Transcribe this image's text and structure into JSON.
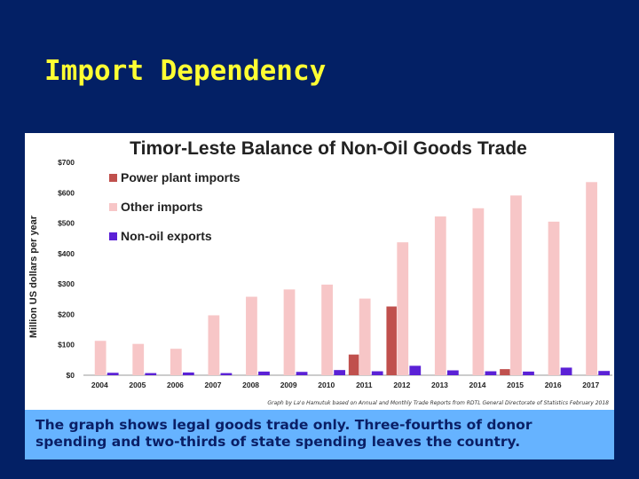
{
  "slide": {
    "title": "Import Dependency",
    "caption": "The graph shows legal goods trade only.  Three-fourths of donor spending and two-thirds of state spending leaves the country."
  },
  "colors": {
    "background": "#032065",
    "title": "#ffff33",
    "caption_box": "#66b3ff",
    "caption_text": "#0a1f66",
    "power_plant": "#c0504d",
    "other_imports": "#f7c6c7",
    "non_oil_exports": "#5b21d6"
  },
  "chart_data": {
    "type": "bar",
    "title": "Timor-Leste Balance of Non-Oil Goods Trade",
    "ylabel": "Million US dollars per year",
    "xlabel": "",
    "source_note": "Graph by La'o Hamutuk based on Annual and Monthly Trade Reports from RDTL General Directorate of Statistics February 2018",
    "ylim": [
      0,
      700
    ],
    "y_ticks": [
      "$0",
      "$100",
      "$200",
      "$300",
      "$400",
      "$500",
      "$600",
      "$700"
    ],
    "y_tick_values": [
      0,
      100,
      200,
      300,
      400,
      500,
      600,
      700
    ],
    "categories": [
      "2004",
      "2005",
      "2006",
      "2007",
      "2008",
      "2009",
      "2010",
      "2011",
      "2012",
      "2013",
      "2014",
      "2015",
      "2016",
      "2017"
    ],
    "legend_position": "top-left",
    "grid": false,
    "series": [
      {
        "name": "Power plant imports",
        "color": "#c0504d",
        "values": [
          0,
          0,
          0,
          0,
          0,
          0,
          0,
          68,
          226,
          0,
          0,
          20,
          0,
          0
        ]
      },
      {
        "name": "Other imports",
        "color": "#f7c6c7",
        "values": [
          113,
          103,
          87,
          197,
          258,
          282,
          298,
          252,
          437,
          522,
          549,
          591,
          505,
          635
        ]
      },
      {
        "name": "Non-oil exports",
        "color": "#5b21d6",
        "values": [
          8,
          7,
          9,
          7,
          12,
          11,
          17,
          13,
          31,
          16,
          13,
          12,
          25,
          14
        ]
      }
    ]
  }
}
